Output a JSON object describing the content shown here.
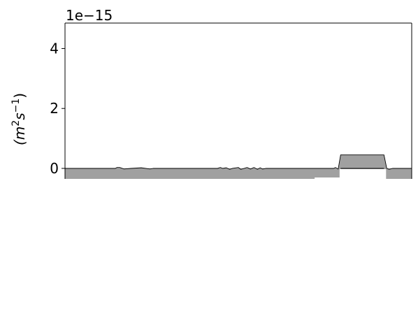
{
  "chart_data": {
    "type": "area",
    "title": "",
    "xlabel": "",
    "ylabel_base": "(m",
    "ylabel_sup1": "2",
    "ylabel_mid": "s",
    "ylabel_sup2": "−1",
    "ylabel_end": ")",
    "offset_text": "1e−15",
    "ylim": [
      -0.35,
      4.85
    ],
    "xlim": [
      0,
      100
    ],
    "yticks": [
      0,
      2,
      4
    ],
    "ytick_labels": [
      "0",
      "2",
      "4"
    ],
    "grid": false,
    "fill_color": "#a0a0a0",
    "line_color": "#000000",
    "series": [
      {
        "values": [
          [
            0,
            0
          ],
          [
            10,
            0
          ],
          [
            14.5,
            0
          ],
          [
            15,
            0.03
          ],
          [
            15.8,
            0.03
          ],
          [
            17,
            -0.02
          ],
          [
            19,
            0
          ],
          [
            22,
            0.02
          ],
          [
            24.5,
            -0.02
          ],
          [
            25.5,
            0
          ],
          [
            30,
            0
          ],
          [
            40,
            0
          ],
          [
            44,
            0
          ],
          [
            44.8,
            0.03
          ],
          [
            45.5,
            0
          ],
          [
            46.5,
            0.02
          ],
          [
            47.5,
            -0.03
          ],
          [
            48.3,
            0
          ],
          [
            50,
            0.03
          ],
          [
            50.7,
            -0.03
          ],
          [
            51.7,
            0
          ],
          [
            52.5,
            0.03
          ],
          [
            53.5,
            -0.02
          ],
          [
            54.5,
            0.03
          ],
          [
            55.5,
            -0.03
          ],
          [
            56.3,
            0.02
          ],
          [
            57,
            -0.02
          ],
          [
            58,
            0
          ],
          [
            65,
            0
          ],
          [
            72,
            0
          ],
          [
            77.5,
            0
          ],
          [
            78,
            0.03
          ],
          [
            78.8,
            -0.02
          ],
          [
            79.5,
            0.45
          ],
          [
            92,
            0.45
          ],
          [
            92.8,
            0
          ],
          [
            93.5,
            -0.03
          ],
          [
            94.5,
            0
          ],
          [
            100,
            0
          ]
        ]
      }
    ]
  }
}
